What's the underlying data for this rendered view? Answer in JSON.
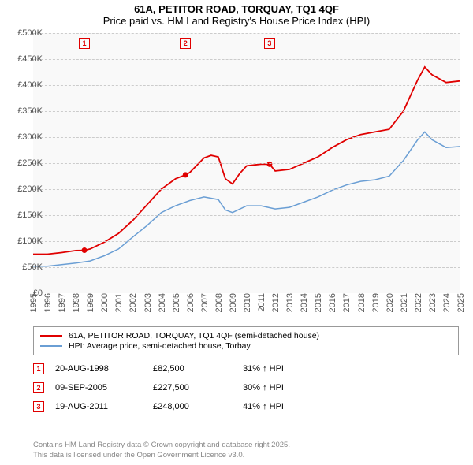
{
  "title": {
    "main": "61A, PETITOR ROAD, TORQUAY, TQ1 4QF",
    "sub": "Price paid vs. HM Land Registry's House Price Index (HPI)",
    "fontsize": 13
  },
  "chart": {
    "type": "line",
    "background_color": "#f9f9f9",
    "grid_color": "#cccccc",
    "ylim": [
      0,
      500000
    ],
    "ytick_step": 50000,
    "ytick_labels": [
      "£0",
      "£50K",
      "£100K",
      "£150K",
      "£200K",
      "£250K",
      "£300K",
      "£350K",
      "£400K",
      "£450K",
      "£500K"
    ],
    "xlim": [
      1995,
      2025
    ],
    "xtick_step": 1,
    "xtick_labels": [
      "1995",
      "1996",
      "1997",
      "1998",
      "1999",
      "2000",
      "2001",
      "2002",
      "2003",
      "2004",
      "2005",
      "2006",
      "2007",
      "2008",
      "2009",
      "2010",
      "2011",
      "2012",
      "2013",
      "2014",
      "2015",
      "2016",
      "2017",
      "2018",
      "2019",
      "2020",
      "2021",
      "2022",
      "2023",
      "2024",
      "2025"
    ],
    "series": [
      {
        "name": "pricepaid",
        "color": "#e00000",
        "width": 1.8,
        "points": [
          [
            1995,
            75000
          ],
          [
            1996,
            75000
          ],
          [
            1997,
            78000
          ],
          [
            1998,
            82000
          ],
          [
            1998.6,
            82500
          ],
          [
            1999,
            85000
          ],
          [
            2000,
            98000
          ],
          [
            2001,
            115000
          ],
          [
            2002,
            140000
          ],
          [
            2003,
            170000
          ],
          [
            2004,
            200000
          ],
          [
            2005,
            220000
          ],
          [
            2005.7,
            227500
          ],
          [
            2006,
            232000
          ],
          [
            2007,
            260000
          ],
          [
            2007.5,
            265000
          ],
          [
            2008,
            262000
          ],
          [
            2008.5,
            220000
          ],
          [
            2009,
            210000
          ],
          [
            2009.5,
            230000
          ],
          [
            2010,
            245000
          ],
          [
            2011,
            248000
          ],
          [
            2011.6,
            248000
          ],
          [
            2012,
            235000
          ],
          [
            2013,
            238000
          ],
          [
            2014,
            250000
          ],
          [
            2015,
            262000
          ],
          [
            2016,
            280000
          ],
          [
            2017,
            295000
          ],
          [
            2018,
            305000
          ],
          [
            2019,
            310000
          ],
          [
            2020,
            315000
          ],
          [
            2021,
            350000
          ],
          [
            2022,
            410000
          ],
          [
            2022.5,
            435000
          ],
          [
            2023,
            420000
          ],
          [
            2024,
            405000
          ],
          [
            2025,
            408000
          ]
        ]
      },
      {
        "name": "hpi",
        "color": "#6a9ed4",
        "width": 1.5,
        "points": [
          [
            1995,
            52000
          ],
          [
            1996,
            52000
          ],
          [
            1997,
            55000
          ],
          [
            1998,
            58000
          ],
          [
            1999,
            62000
          ],
          [
            2000,
            72000
          ],
          [
            2001,
            85000
          ],
          [
            2002,
            108000
          ],
          [
            2003,
            130000
          ],
          [
            2004,
            155000
          ],
          [
            2005,
            168000
          ],
          [
            2006,
            178000
          ],
          [
            2007,
            185000
          ],
          [
            2008,
            180000
          ],
          [
            2008.5,
            160000
          ],
          [
            2009,
            155000
          ],
          [
            2010,
            168000
          ],
          [
            2011,
            168000
          ],
          [
            2012,
            162000
          ],
          [
            2013,
            165000
          ],
          [
            2014,
            175000
          ],
          [
            2015,
            185000
          ],
          [
            2016,
            198000
          ],
          [
            2017,
            208000
          ],
          [
            2018,
            215000
          ],
          [
            2019,
            218000
          ],
          [
            2020,
            225000
          ],
          [
            2021,
            255000
          ],
          [
            2022,
            295000
          ],
          [
            2022.5,
            310000
          ],
          [
            2023,
            295000
          ],
          [
            2024,
            280000
          ],
          [
            2025,
            282000
          ]
        ]
      }
    ],
    "sale_markers": [
      {
        "n": "1",
        "year": 1998.6,
        "value": 82500,
        "color": "#e00000"
      },
      {
        "n": "2",
        "year": 2005.7,
        "value": 227500,
        "color": "#e00000"
      },
      {
        "n": "3",
        "year": 2011.6,
        "value": 248000,
        "color": "#e00000"
      }
    ]
  },
  "legend": {
    "items": [
      {
        "color": "#e00000",
        "label": "61A, PETITOR ROAD, TORQUAY, TQ1 4QF (semi-detached house)"
      },
      {
        "color": "#6a9ed4",
        "label": "HPI: Average price, semi-detached house, Torbay"
      }
    ]
  },
  "sales": [
    {
      "n": "1",
      "color": "#e00000",
      "date": "20-AUG-1998",
      "price": "£82,500",
      "delta": "31% ↑ HPI"
    },
    {
      "n": "2",
      "color": "#e00000",
      "date": "09-SEP-2005",
      "price": "£227,500",
      "delta": "30% ↑ HPI"
    },
    {
      "n": "3",
      "color": "#e00000",
      "date": "19-AUG-2011",
      "price": "£248,000",
      "delta": "41% ↑ HPI"
    }
  ],
  "attribution": {
    "line1": "Contains HM Land Registry data © Crown copyright and database right 2025.",
    "line2": "This data is licensed under the Open Government Licence v3.0."
  }
}
